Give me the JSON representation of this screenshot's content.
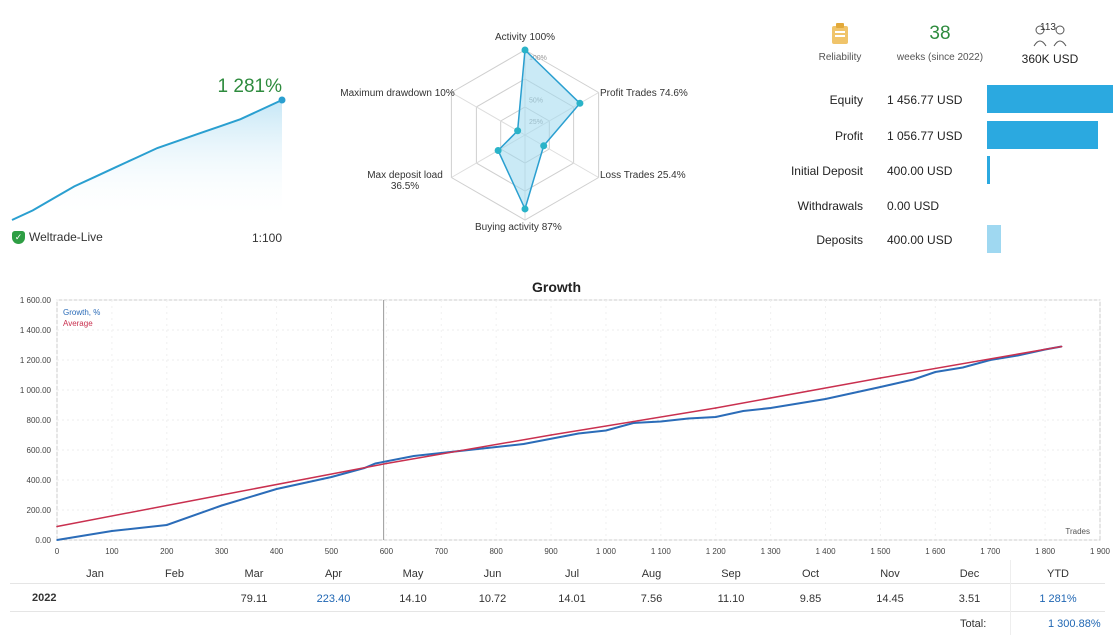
{
  "summary": {
    "gain": "1 281%",
    "broker": "Weltrade-Live",
    "leverage": "1:100",
    "sparkline": [
      0,
      8,
      18,
      28,
      36,
      44,
      52,
      60,
      66,
      72,
      78,
      84,
      92,
      100
    ]
  },
  "radar": {
    "labels": {
      "top": "Activity 100%",
      "top_right": "Profit Trades 74.6%",
      "bottom_right": "Loss Trades 25.4%",
      "bottom": "Buying activity 87%",
      "bottom_left": "Max deposit load 36.5%",
      "top_left": "Maximum drawdown 10%"
    },
    "ring_labels": [
      "100%",
      "50%",
      "25%"
    ],
    "values": [
      1.0,
      0.746,
      0.254,
      0.87,
      0.365,
      0.1
    ]
  },
  "stats": {
    "reliability_caption": "Reliability",
    "weeks_value": "38",
    "weeks_caption": "weeks (since 2022)",
    "subscribers_badge": "113",
    "funds_value": "360K USD"
  },
  "balances": [
    {
      "label": "Equity",
      "value": "1 456.77 USD",
      "bar": 1.0
    },
    {
      "label": "Profit",
      "value": "1 056.77 USD",
      "bar": 0.88
    },
    {
      "label": "Initial Deposit",
      "value": "400.00 USD",
      "bar": 0.02
    },
    {
      "label": "Withdrawals",
      "value": "0.00 USD",
      "bar": 0.0
    },
    {
      "label": "Deposits",
      "value": "400.00 USD",
      "bar": 0.11
    }
  ],
  "colors": {
    "accent_green": "#2e8b3e",
    "bar_blue": "#2ba9e0",
    "growth_line": "#2b6cb8",
    "equity_line": "#c9304f"
  },
  "growth_chart": {
    "title": "Growth",
    "legend": [
      "Growth, %",
      "Average"
    ]
  },
  "chart_data": {
    "type": "line",
    "title": "Growth",
    "xlabel": "",
    "ylabel": "",
    "ylim": [
      0,
      1600
    ],
    "yticks": [
      "0.00",
      "200.00",
      "400.00",
      "600.00",
      "800.00",
      "1 000.00",
      "1 200.00",
      "1 400.00",
      "1 600.00"
    ],
    "xticks": [
      "0",
      "100",
      "200",
      "300",
      "400",
      "500",
      "600",
      "700",
      "800",
      "900",
      "1 000",
      "1 100",
      "1 200",
      "1 300",
      "1 400",
      "1 500",
      "1 600",
      "1 700",
      "1 800",
      "1 900"
    ],
    "xlim": [
      0,
      1900
    ],
    "x_axis_caption": "Trades",
    "series": [
      {
        "name": "Growth, %",
        "color": "#2b6cb8",
        "points": [
          [
            0,
            0
          ],
          [
            50,
            30
          ],
          [
            100,
            60
          ],
          [
            200,
            100
          ],
          [
            300,
            230
          ],
          [
            400,
            340
          ],
          [
            500,
            420
          ],
          [
            560,
            480
          ],
          [
            580,
            510
          ],
          [
            650,
            560
          ],
          [
            750,
            600
          ],
          [
            850,
            640
          ],
          [
            950,
            710
          ],
          [
            1000,
            730
          ],
          [
            1050,
            780
          ],
          [
            1100,
            790
          ],
          [
            1150,
            810
          ],
          [
            1200,
            820
          ],
          [
            1250,
            860
          ],
          [
            1300,
            880
          ],
          [
            1350,
            910
          ],
          [
            1400,
            940
          ],
          [
            1450,
            980
          ],
          [
            1500,
            1020
          ],
          [
            1560,
            1070
          ],
          [
            1600,
            1120
          ],
          [
            1650,
            1150
          ],
          [
            1700,
            1200
          ],
          [
            1750,
            1230
          ],
          [
            1800,
            1270
          ],
          [
            1830,
            1290
          ]
        ]
      },
      {
        "name": "Average",
        "color": "#c9304f",
        "points": [
          [
            0,
            90
          ],
          [
            300,
            300
          ],
          [
            600,
            510
          ],
          [
            900,
            700
          ],
          [
            1200,
            880
          ],
          [
            1500,
            1080
          ],
          [
            1830,
            1290
          ]
        ]
      }
    ]
  },
  "months": {
    "headers": [
      "Jan",
      "Feb",
      "Mar",
      "Apr",
      "May",
      "Jun",
      "Jul",
      "Aug",
      "Sep",
      "Oct",
      "Nov",
      "Dec",
      "YTD"
    ],
    "year": "2022",
    "values": [
      "",
      "",
      "79.11",
      "223.40",
      "14.10",
      "10.72",
      "14.01",
      "7.56",
      "11.10",
      "9.85",
      "14.45",
      "3.51",
      "1 281%"
    ],
    "total_label": "Total:",
    "total_value": "1 300.88%"
  }
}
